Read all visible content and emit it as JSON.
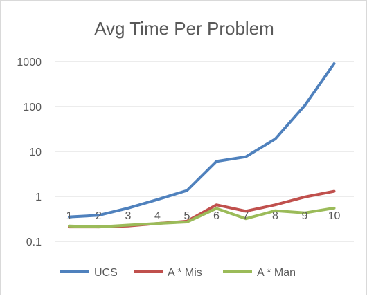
{
  "chart_data": {
    "type": "line",
    "title": "Avg Time Per Problem",
    "xlabel": "",
    "ylabel": "",
    "yscale": "log",
    "ylim": [
      0.1,
      1000
    ],
    "y_ticks": [
      0.1,
      1,
      10,
      100,
      1000
    ],
    "y_tick_labels": [
      "0.1",
      "1",
      "10",
      "100",
      "1000"
    ],
    "categories": [
      "1",
      "2",
      "3",
      "4",
      "5",
      "6",
      "7",
      "8",
      "9",
      "10"
    ],
    "grid": true,
    "legend_position": "bottom",
    "series": [
      {
        "name": "UCS",
        "color": "#4f81bd",
        "values": [
          0.35,
          0.38,
          0.55,
          0.85,
          1.35,
          6.0,
          7.6,
          19,
          105,
          900
        ]
      },
      {
        "name": "A * Mis",
        "color": "#c0504d",
        "values": [
          0.21,
          0.21,
          0.22,
          0.25,
          0.28,
          0.65,
          0.47,
          0.65,
          0.97,
          1.3
        ]
      },
      {
        "name": "A * Man",
        "color": "#9bbb59",
        "values": [
          0.22,
          0.21,
          0.23,
          0.25,
          0.27,
          0.54,
          0.32,
          0.48,
          0.43,
          0.55
        ]
      }
    ]
  }
}
